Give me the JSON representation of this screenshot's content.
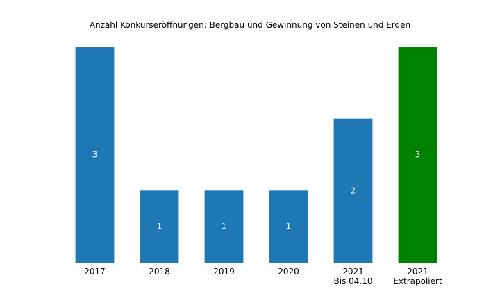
{
  "chart_data": {
    "type": "bar",
    "title": "Anzahl Konkurseröffnungen: Bergbau und Gewinnung von Steinen und Erden",
    "categories": [
      [
        "2017"
      ],
      [
        "2018"
      ],
      [
        "2019"
      ],
      [
        "2020"
      ],
      [
        "2021",
        "Bis 04.10"
      ],
      [
        "2021",
        "Extrapoliert"
      ]
    ],
    "values": [
      3,
      1,
      1,
      1,
      2,
      3
    ],
    "bar_colors": [
      "#1f77b4",
      "#1f77b4",
      "#1f77b4",
      "#1f77b4",
      "#1f77b4",
      "#008000"
    ],
    "data_labels": [
      "3",
      "1",
      "1",
      "1",
      "2",
      "3"
    ],
    "ylim": [
      0,
      3
    ],
    "xlabel": "",
    "ylabel": "",
    "grid": false,
    "axes_visible": false
  }
}
